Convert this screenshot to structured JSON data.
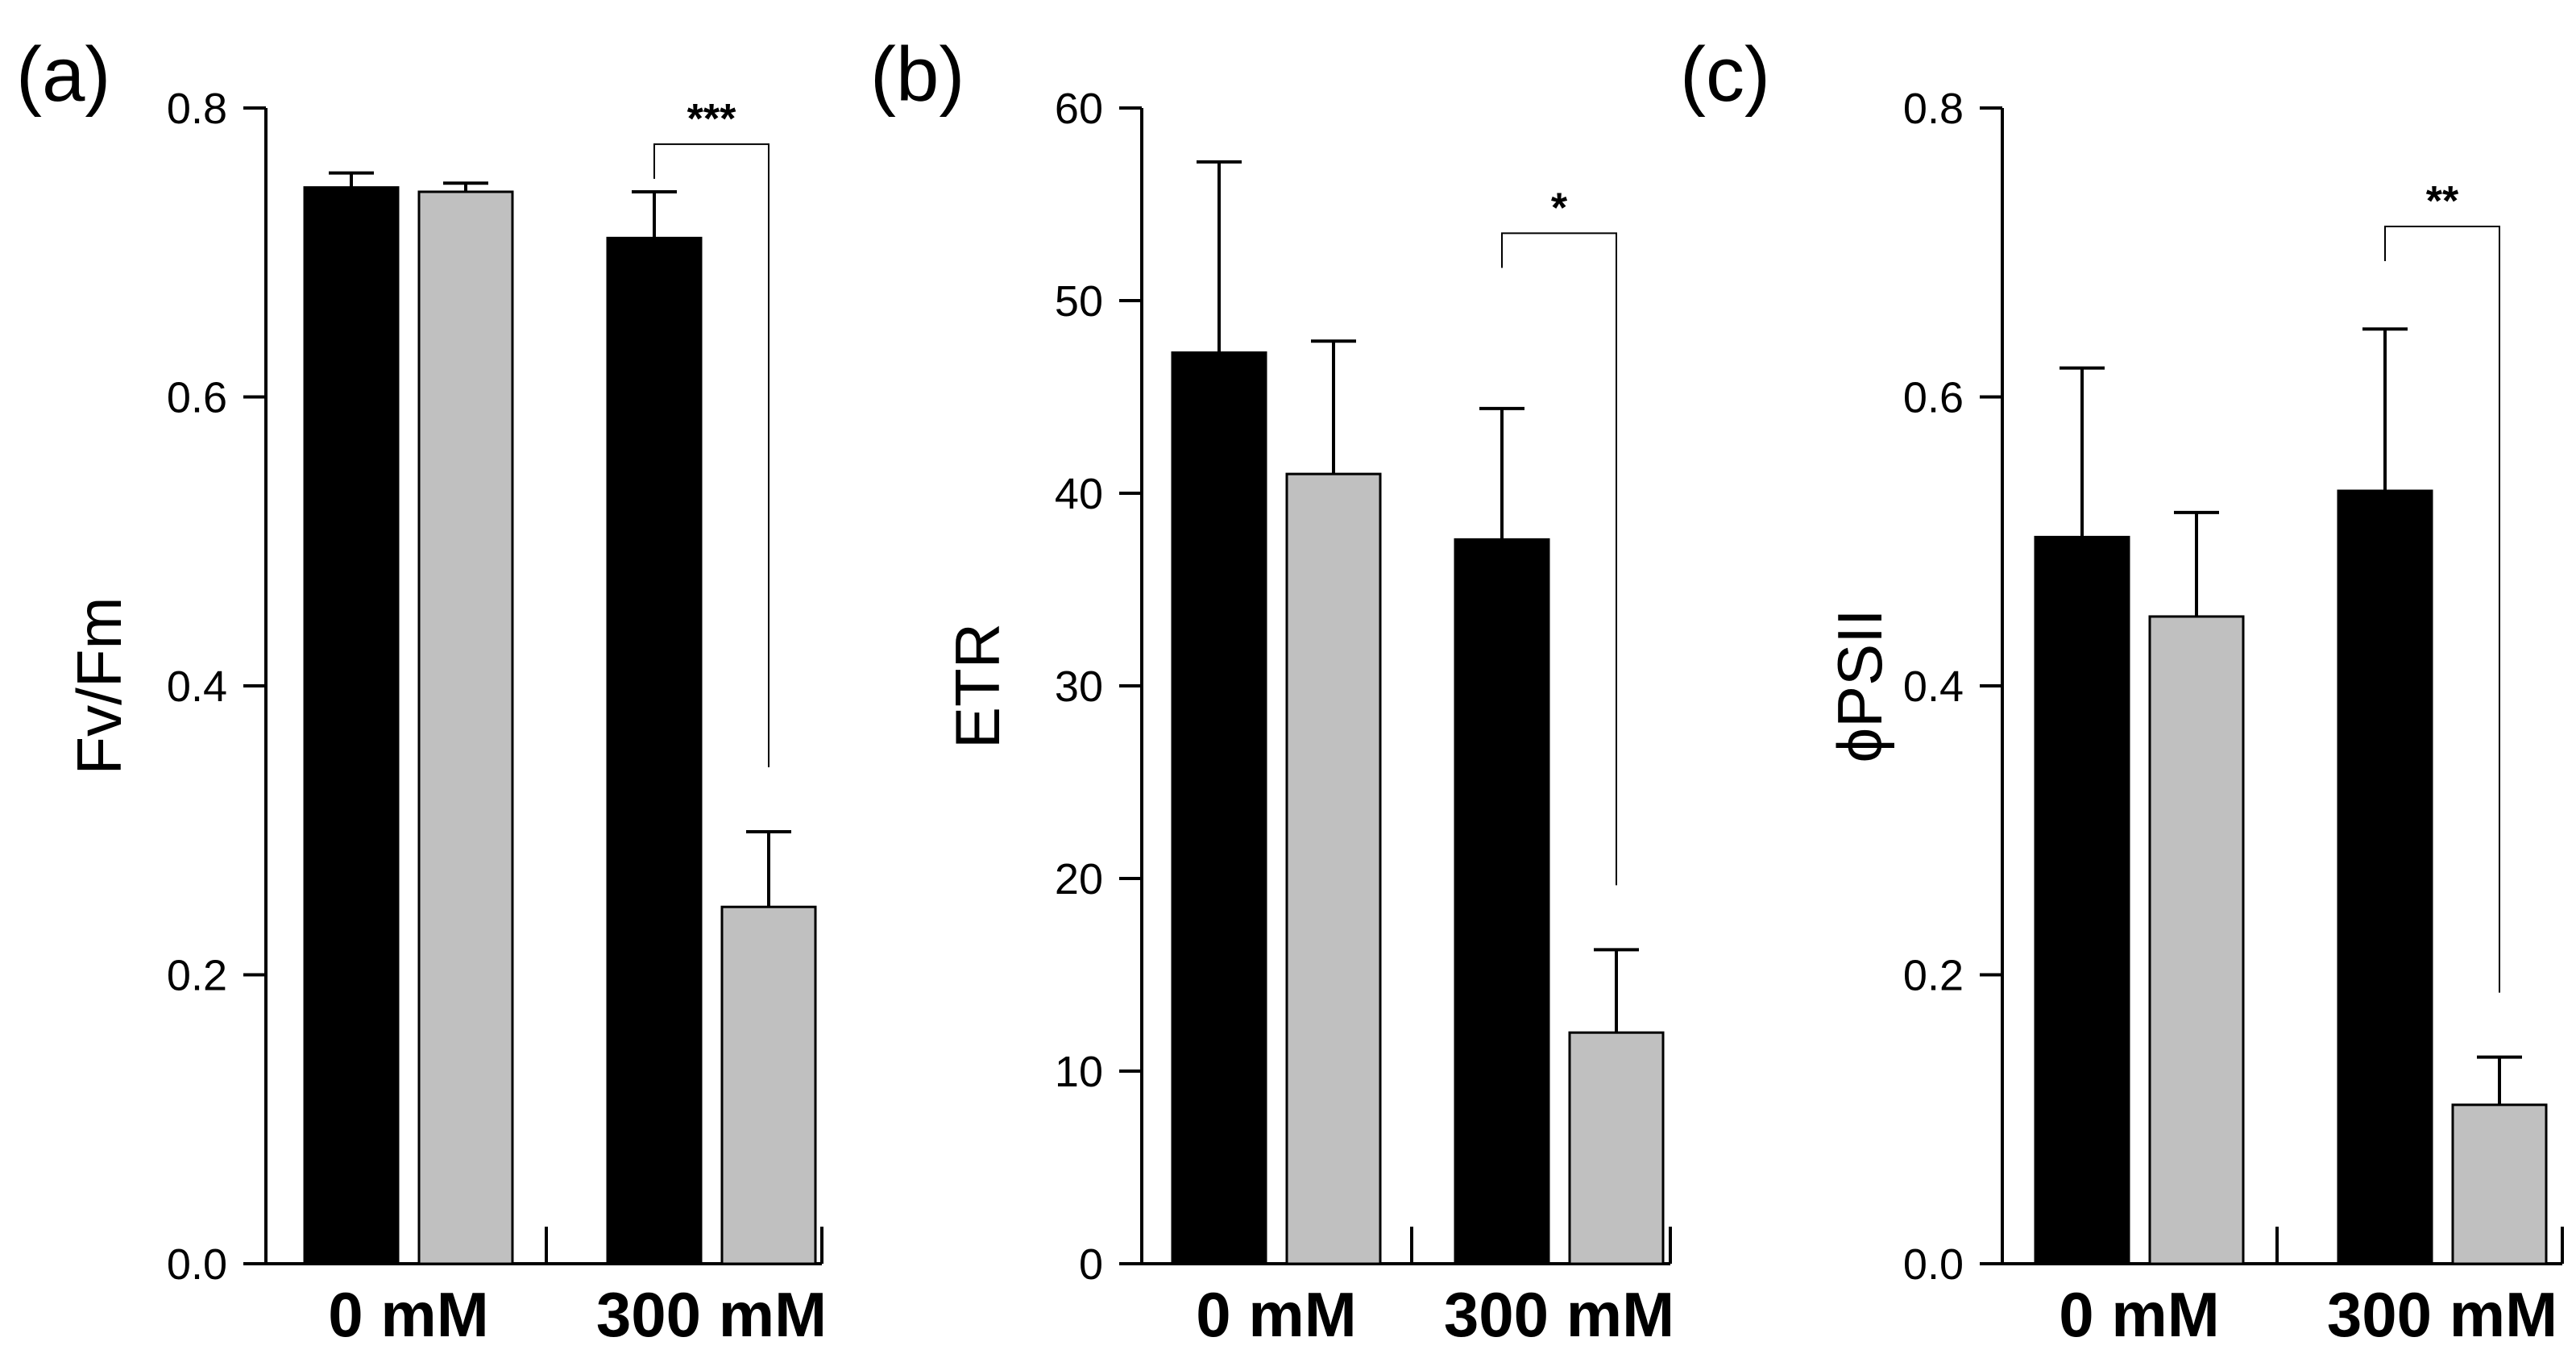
{
  "colors": {
    "control": "#000000",
    "treatment": "#c0c0c0",
    "axis": "#000000"
  },
  "chart_data": [
    {
      "type": "bar",
      "panel_label": "(a)",
      "ylabel": "Fv/Fm",
      "ylim": [
        0.0,
        0.8
      ],
      "yticks": [
        "0.0",
        "0.2",
        "0.4",
        "0.6",
        "0.8"
      ],
      "ytick_values": [
        0.0,
        0.2,
        0.4,
        0.6,
        0.8
      ],
      "categories": [
        "0 mM",
        "300 mM"
      ],
      "series": [
        {
          "color": "#000000",
          "values": [
            0.745,
            0.71
          ],
          "errors": [
            0.01,
            0.032
          ]
        },
        {
          "color": "#c0c0c0",
          "values": [
            0.742,
            0.247
          ],
          "errors": [
            0.006,
            0.052
          ]
        }
      ],
      "significance": {
        "category_index": 1,
        "label": "***",
        "bracket_top": 0.775
      }
    },
    {
      "type": "bar",
      "panel_label": "(b)",
      "ylabel": "ETR",
      "ylim": [
        0,
        60
      ],
      "yticks": [
        "0",
        "10",
        "20",
        "30",
        "40",
        "50",
        "60"
      ],
      "ytick_values": [
        0,
        10,
        20,
        30,
        40,
        50,
        60
      ],
      "categories": [
        "0 mM",
        "300 mM"
      ],
      "series": [
        {
          "color": "#000000",
          "values": [
            47.3,
            37.6
          ],
          "errors": [
            9.9,
            6.8
          ]
        },
        {
          "color": "#c0c0c0",
          "values": [
            41.0,
            12.0
          ],
          "errors": [
            6.9,
            4.3
          ]
        }
      ],
      "significance": {
        "category_index": 1,
        "label": "*",
        "bracket_top": 53.5
      }
    },
    {
      "type": "bar",
      "panel_label": "(c)",
      "ylabel": "ϕPSII",
      "ylim": [
        0.0,
        0.8
      ],
      "yticks": [
        "0.0",
        "0.2",
        "0.4",
        "0.6",
        "0.8"
      ],
      "ytick_values": [
        0.0,
        0.2,
        0.4,
        0.6,
        0.8
      ],
      "categories": [
        "0 mM",
        "300 mM"
      ],
      "series": [
        {
          "color": "#000000",
          "values": [
            0.503,
            0.535
          ],
          "errors": [
            0.117,
            0.112
          ]
        },
        {
          "color": "#c0c0c0",
          "values": [
            0.448,
            0.11
          ],
          "errors": [
            0.072,
            0.033
          ]
        }
      ],
      "significance": {
        "category_index": 1,
        "label": "**",
        "bracket_top": 0.718
      }
    }
  ]
}
